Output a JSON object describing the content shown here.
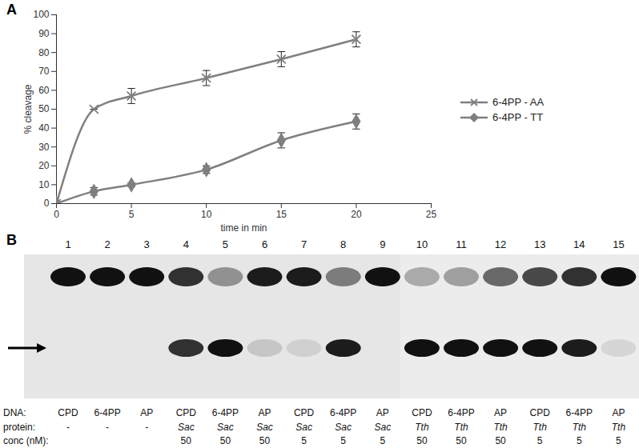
{
  "chart_data": {
    "type": "line",
    "panel_label": "A",
    "x_label": "time in min",
    "y_label": "% cleavage",
    "x": [
      0,
      2.5,
      5,
      10,
      15,
      20
    ],
    "series": [
      {
        "name": "6-4PP - AA",
        "color": "#7f7f7f",
        "marker": "x",
        "line_style": "solid",
        "values": [
          0,
          50,
          57,
          66.5,
          76.5,
          87
        ],
        "errors": [
          0,
          0,
          4,
          4,
          4,
          4
        ]
      },
      {
        "name": "6-4PP - TT",
        "color": "#7f7f7f",
        "marker": "diamond",
        "line_style": "solid",
        "values": [
          0,
          6.5,
          10,
          18,
          33.5,
          43.5
        ],
        "errors": [
          0,
          2,
          1,
          2,
          4,
          4
        ]
      }
    ],
    "xlim": [
      0,
      25
    ],
    "xticks": [
      0,
      5,
      10,
      15,
      20,
      25
    ],
    "ylim": [
      0,
      100
    ],
    "yticks": [
      0,
      10,
      20,
      30,
      40,
      50,
      60,
      70,
      80,
      90,
      100
    ],
    "grid": false,
    "legend": "right"
  },
  "gel": {
    "panel_label": "B",
    "row_labels": [
      "DNA:",
      "protein:",
      "conc (nM):"
    ],
    "lanes": [
      {
        "number": 1,
        "dna": "CPD",
        "protein": "-",
        "conc": null
      },
      {
        "number": 2,
        "dna": "6-4PP",
        "protein": "-",
        "conc": null
      },
      {
        "number": 3,
        "dna": "AP",
        "protein": "-",
        "conc": null
      },
      {
        "number": 4,
        "dna": "CPD",
        "protein": "Sac",
        "conc": 50
      },
      {
        "number": 5,
        "dna": "6-4PP",
        "protein": "Sac",
        "conc": 50
      },
      {
        "number": 6,
        "dna": "AP",
        "protein": "Sac",
        "conc": 50
      },
      {
        "number": 7,
        "dna": "CPD",
        "protein": "Sac",
        "conc": 5
      },
      {
        "number": 8,
        "dna": "6-4PP",
        "protein": "Sac",
        "conc": 5
      },
      {
        "number": 9,
        "dna": "AP",
        "protein": "Sac",
        "conc": 5
      },
      {
        "number": 10,
        "dna": "CPD",
        "protein": "Tth",
        "conc": 50
      },
      {
        "number": 11,
        "dna": "6-4PP",
        "protein": "Tth",
        "conc": 50
      },
      {
        "number": 12,
        "dna": "AP",
        "protein": "Tth",
        "conc": 50
      },
      {
        "number": 13,
        "dna": "CPD",
        "protein": "Tth",
        "conc": 5
      },
      {
        "number": 14,
        "dna": "6-4PP",
        "protein": "Tth",
        "conc": 5
      },
      {
        "number": 15,
        "dna": "AP",
        "protein": "Tth",
        "conc": 5
      }
    ]
  }
}
